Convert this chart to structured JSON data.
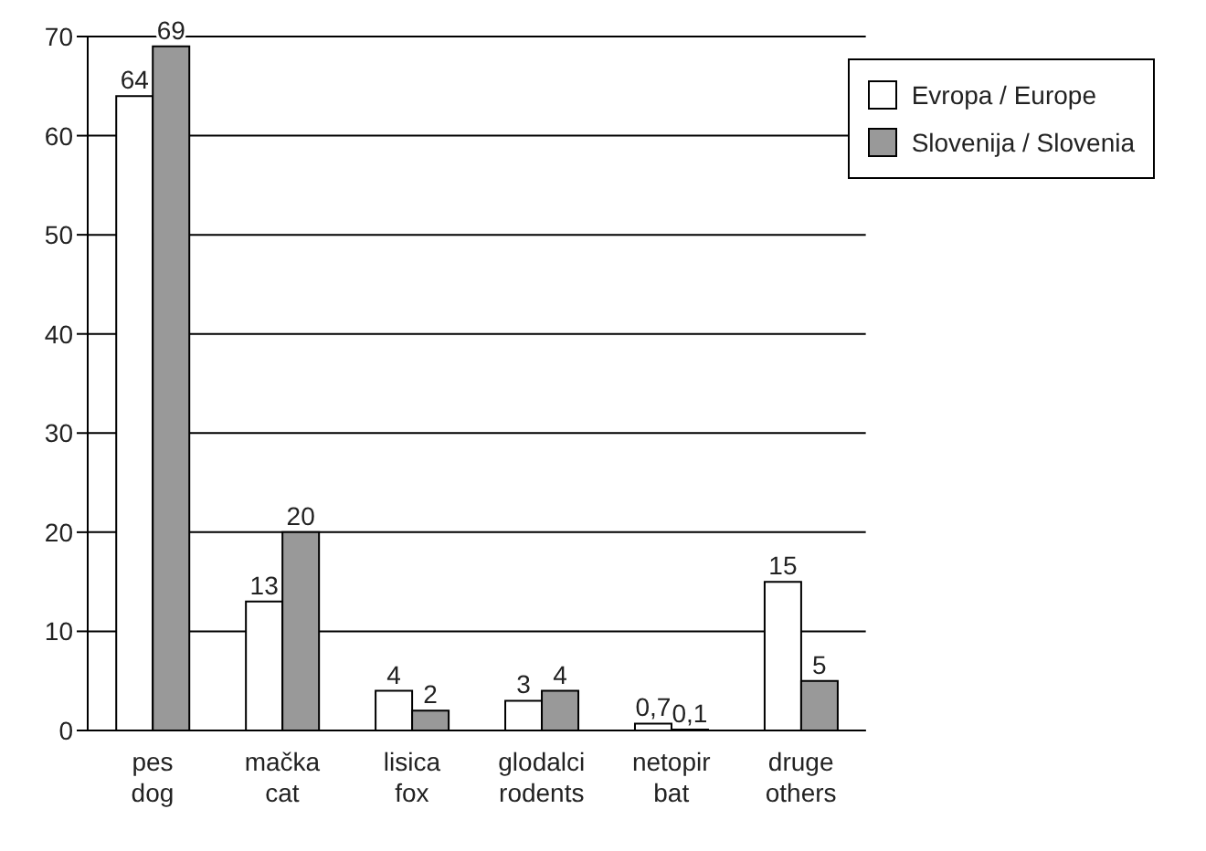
{
  "chart_data": {
    "type": "bar",
    "categories": [
      "pes\ndog",
      "mačka\ncat",
      "lisica\nfox",
      "glodalci\nrodents",
      "netopir\nbat",
      "druge\nothers"
    ],
    "series": [
      {
        "name": "Evropa / Europe",
        "color": "#ffffff",
        "values": [
          64,
          13,
          4,
          3,
          0.7,
          15
        ],
        "value_labels": [
          "64",
          "13",
          "4",
          "3",
          "0,7",
          "15"
        ]
      },
      {
        "name": "Slovenija / Slovenia",
        "color": "#999999",
        "values": [
          69,
          20,
          2,
          4,
          0.1,
          5
        ],
        "value_labels": [
          "69",
          "20",
          "2",
          "4",
          "0,1",
          "5"
        ]
      }
    ],
    "ylim": [
      0,
      70
    ],
    "yticks": [
      0,
      10,
      20,
      30,
      40,
      50,
      60,
      70
    ],
    "grid": "y",
    "legend": "top right"
  }
}
